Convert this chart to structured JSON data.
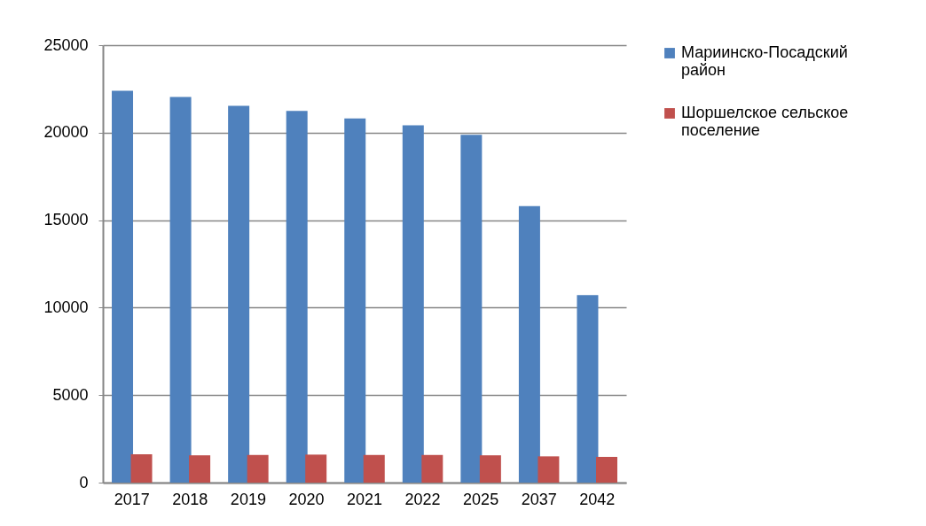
{
  "chart_data": {
    "type": "bar",
    "categories": [
      "2017",
      "2018",
      "2019",
      "2020",
      "2021",
      "2022",
      "2025",
      "2037",
      "2042"
    ],
    "series": [
      {
        "name": "Мариинско-Посадский район",
        "color": "#4f81bd",
        "values": [
          22400,
          22040,
          21530,
          21240,
          20810,
          20420,
          19880,
          15800,
          10710
        ]
      },
      {
        "name": "Шоршелское сельское поселение",
        "color": "#c0504d",
        "values": [
          1620,
          1560,
          1580,
          1600,
          1580,
          1580,
          1560,
          1500,
          1470
        ]
      }
    ],
    "ylim": [
      0,
      25000
    ],
    "yticks": [
      0,
      5000,
      10000,
      15000,
      20000,
      25000
    ],
    "grid": "y",
    "legend": "right"
  }
}
